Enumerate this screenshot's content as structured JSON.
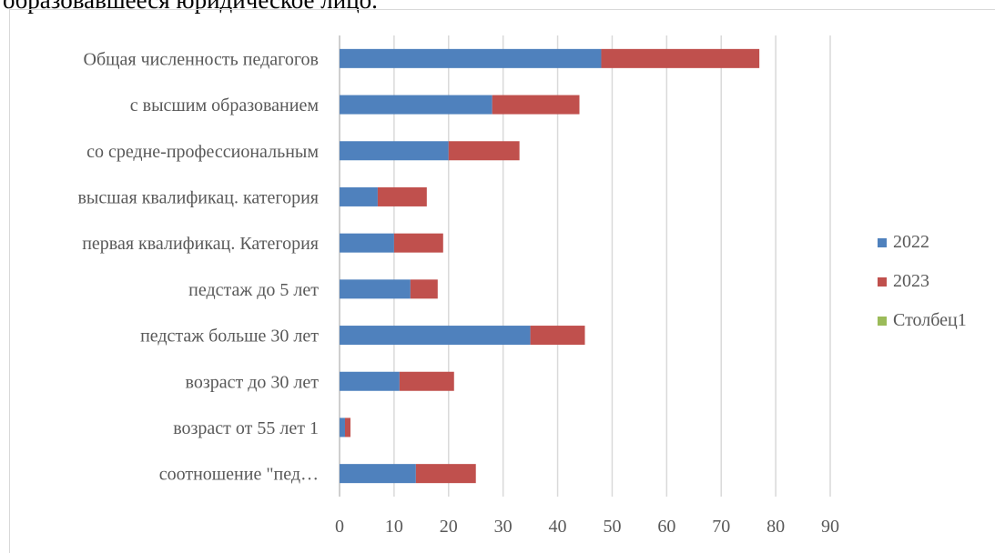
{
  "heading": "образовавшееся юридическое лицо.",
  "chart_data": {
    "type": "bar",
    "orientation": "horizontal",
    "stacked": true,
    "categories": [
      "Общая численность педагогов",
      "с высшим образованием",
      "со средне-профессиональным",
      "высшая квалификац. категория",
      "первая квалификац. Категория",
      "педстаж до 5 лет",
      "педстаж больше 30 лет",
      "возраст до 30 лет",
      "возраст от 55 лет 1",
      "соотношение \"пед…"
    ],
    "series": [
      {
        "name": "2022",
        "color": "#4f81bd",
        "values": [
          48,
          28,
          20,
          7,
          10,
          13,
          35,
          11,
          1,
          14
        ]
      },
      {
        "name": "2023",
        "color": "#c0504d",
        "values": [
          29,
          16,
          13,
          9,
          9,
          5,
          10,
          10,
          1,
          11
        ]
      },
      {
        "name": "Столбец1",
        "color": "#9bbb59",
        "values": [
          0,
          0,
          0,
          0,
          0,
          0,
          0,
          0,
          0,
          0
        ]
      }
    ],
    "xlim": [
      0,
      90
    ],
    "xticks": [
      0,
      10,
      20,
      30,
      40,
      50,
      60,
      70,
      80,
      90
    ],
    "grid": "vertical",
    "legend": "right"
  }
}
